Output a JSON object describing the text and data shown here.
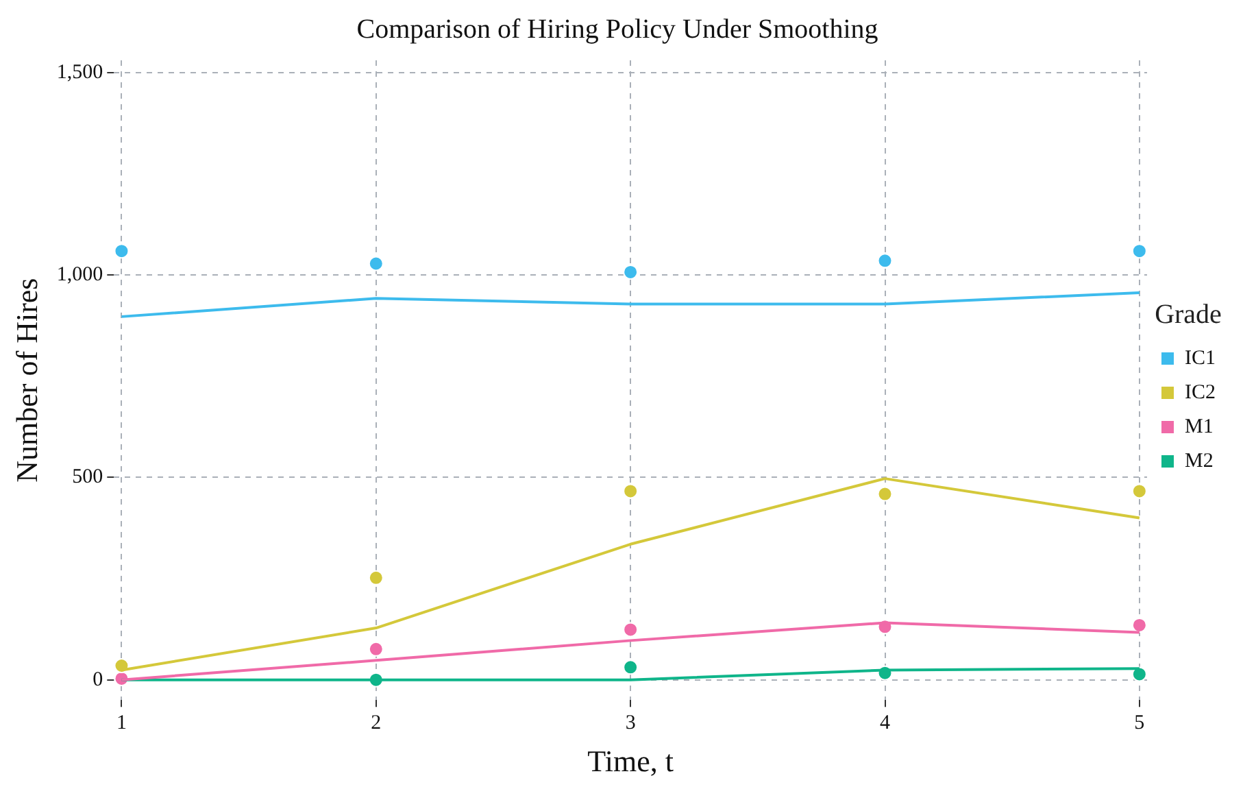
{
  "chart_data": {
    "type": "line",
    "title": "Comparison of Hiring Policy Under Smoothing",
    "xlabel": "Time, t",
    "ylabel": "Number of Hires",
    "legend_title": "Grade",
    "legend": "right",
    "grid": true,
    "x": [
      1,
      2,
      3,
      4,
      5
    ],
    "xlim": [
      0.97,
      5.03
    ],
    "xticks": [
      1,
      2,
      3,
      4,
      5
    ],
    "ylim": [
      -50,
      1530
    ],
    "yticks": [
      0,
      500,
      {
        "value": 1000,
        "label": "1,000"
      },
      {
        "value": 1500,
        "label": "1,500"
      }
    ],
    "series": [
      {
        "name": "IC1",
        "marker": "none",
        "color": "#3dbbed",
        "values": [
          897,
          942,
          928,
          928,
          956
        ]
      },
      {
        "name": "IC2",
        "marker": "none",
        "color": "#d4c83a",
        "values": [
          24,
          128,
          335,
          497,
          400
        ]
      },
      {
        "name": "M1",
        "marker": "none",
        "color": "#f06aa8",
        "values": [
          0,
          48,
          97,
          141,
          117
        ]
      },
      {
        "name": "M2",
        "marker": "none",
        "color": "#0fb58a",
        "values": [
          0,
          0,
          0,
          24,
          28
        ]
      },
      {
        "type": "scatter",
        "marker": "circle",
        "color": "#3dbbed",
        "values": [
          1059,
          1028,
          1007,
          1035,
          1059
        ]
      },
      {
        "type": "scatter",
        "marker": "circle",
        "color": "#d4c83a",
        "values": [
          35,
          252,
          466,
          459,
          466
        ]
      },
      {
        "type": "scatter",
        "marker": "circle",
        "color": "#f06aa8",
        "values": [
          3,
          76,
          124,
          131,
          135
        ]
      },
      {
        "type": "scatter",
        "marker": "circle",
        "color": "#0fb58a",
        "values": [
          null,
          0,
          31,
          17,
          14
        ]
      }
    ]
  }
}
